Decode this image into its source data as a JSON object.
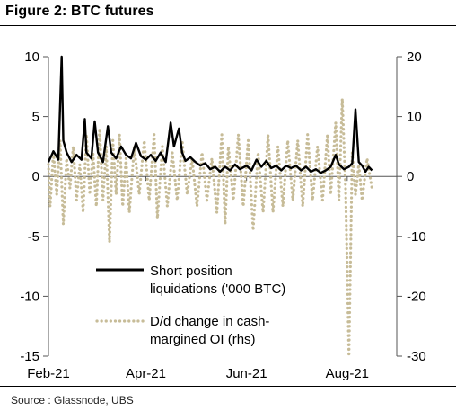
{
  "figure": {
    "title": "Figure 2: BTC futures",
    "source": "Source : Glassnode, UBS"
  },
  "colors": {
    "primary_series": "#000000",
    "secondary_series": "#c7bc98",
    "axis": "#555555"
  },
  "chart_data": {
    "type": "line",
    "x_range": [
      "2021-02-01",
      "2021-08-31"
    ],
    "x_ticks": [
      "Feb-21",
      "Apr-21",
      "Jun-21",
      "Aug-21"
    ],
    "x_tick_dates": [
      "2021-02-01",
      "2021-04-01",
      "2021-06-01",
      "2021-08-01"
    ],
    "ylim_left": [
      -15,
      10
    ],
    "yticks_left": [
      "10",
      "5",
      "0",
      "-5",
      "-10",
      "-15"
    ],
    "ylim_right": [
      -30,
      20
    ],
    "yticks_right": [
      "20",
      "10",
      "0",
      "-10",
      "-20",
      "-30"
    ],
    "grid": false,
    "legend_position": "lower-left",
    "series": [
      {
        "name": "Short position liquidations ('000 BTC)",
        "name_lines": [
          "Short position",
          "liquidations ('000 BTC)"
        ],
        "axis": "left",
        "style": "solid",
        "values": [
          [
            "2021-02-01",
            1.2
          ],
          [
            "2021-02-04",
            2.1
          ],
          [
            "2021-02-07",
            1.4
          ],
          [
            "2021-02-09",
            10.0
          ],
          [
            "2021-02-10",
            3.0
          ],
          [
            "2021-02-12",
            2.0
          ],
          [
            "2021-02-15",
            1.2
          ],
          [
            "2021-02-18",
            1.8
          ],
          [
            "2021-02-21",
            1.4
          ],
          [
            "2021-02-23",
            4.8
          ],
          [
            "2021-02-24",
            2.0
          ],
          [
            "2021-02-27",
            1.5
          ],
          [
            "2021-03-01",
            4.6
          ],
          [
            "2021-03-03",
            2.0
          ],
          [
            "2021-03-06",
            1.2
          ],
          [
            "2021-03-09",
            4.2
          ],
          [
            "2021-03-11",
            2.0
          ],
          [
            "2021-03-14",
            1.5
          ],
          [
            "2021-03-17",
            2.5
          ],
          [
            "2021-03-20",
            1.8
          ],
          [
            "2021-03-23",
            1.5
          ],
          [
            "2021-03-26",
            2.8
          ],
          [
            "2021-03-29",
            1.7
          ],
          [
            "2021-04-01",
            1.4
          ],
          [
            "2021-04-04",
            1.8
          ],
          [
            "2021-04-07",
            1.3
          ],
          [
            "2021-04-10",
            2.0
          ],
          [
            "2021-04-13",
            1.2
          ],
          [
            "2021-04-16",
            4.5
          ],
          [
            "2021-04-18",
            2.5
          ],
          [
            "2021-04-21",
            4.0
          ],
          [
            "2021-04-23",
            2.0
          ],
          [
            "2021-04-25",
            1.3
          ],
          [
            "2021-04-28",
            1.6
          ],
          [
            "2021-05-01",
            1.2
          ],
          [
            "2021-05-04",
            0.9
          ],
          [
            "2021-05-07",
            1.1
          ],
          [
            "2021-05-10",
            0.6
          ],
          [
            "2021-05-13",
            0.8
          ],
          [
            "2021-05-16",
            0.4
          ],
          [
            "2021-05-19",
            0.8
          ],
          [
            "2021-05-22",
            0.5
          ],
          [
            "2021-05-25",
            1.0
          ],
          [
            "2021-05-28",
            0.6
          ],
          [
            "2021-06-01",
            0.9
          ],
          [
            "2021-06-04",
            0.5
          ],
          [
            "2021-06-07",
            1.4
          ],
          [
            "2021-06-10",
            0.8
          ],
          [
            "2021-06-13",
            1.3
          ],
          [
            "2021-06-16",
            0.7
          ],
          [
            "2021-06-19",
            0.9
          ],
          [
            "2021-06-22",
            0.5
          ],
          [
            "2021-06-25",
            0.9
          ],
          [
            "2021-06-28",
            0.7
          ],
          [
            "2021-07-01",
            0.9
          ],
          [
            "2021-07-04",
            0.5
          ],
          [
            "2021-07-07",
            0.8
          ],
          [
            "2021-07-10",
            0.4
          ],
          [
            "2021-07-13",
            0.6
          ],
          [
            "2021-07-16",
            0.3
          ],
          [
            "2021-07-19",
            0.5
          ],
          [
            "2021-07-22",
            0.8
          ],
          [
            "2021-07-25",
            1.8
          ],
          [
            "2021-07-27",
            1.0
          ],
          [
            "2021-07-30",
            0.6
          ],
          [
            "2021-08-02",
            0.8
          ],
          [
            "2021-08-04",
            1.1
          ],
          [
            "2021-08-06",
            5.6
          ],
          [
            "2021-08-08",
            1.2
          ],
          [
            "2021-08-10",
            0.9
          ],
          [
            "2021-08-12",
            0.4
          ],
          [
            "2021-08-14",
            0.8
          ],
          [
            "2021-08-16",
            0.5
          ]
        ]
      },
      {
        "name": "D/d change in cash-margined OI (rhs)",
        "name_lines": [
          "D/d change in cash-",
          "margined OI (rhs)"
        ],
        "axis": "right",
        "style": "dotted",
        "values": [
          [
            "2021-02-01",
            2
          ],
          [
            "2021-02-02",
            -5
          ],
          [
            "2021-02-04",
            4
          ],
          [
            "2021-02-06",
            -3
          ],
          [
            "2021-02-08",
            6
          ],
          [
            "2021-02-10",
            -8
          ],
          [
            "2021-02-12",
            3
          ],
          [
            "2021-02-14",
            -2
          ],
          [
            "2021-02-16",
            5
          ],
          [
            "2021-02-18",
            -4
          ],
          [
            "2021-02-20",
            2
          ],
          [
            "2021-02-22",
            -6
          ],
          [
            "2021-02-24",
            7
          ],
          [
            "2021-02-26",
            -3
          ],
          [
            "2021-02-28",
            4
          ],
          [
            "2021-03-02",
            -5
          ],
          [
            "2021-03-04",
            8
          ],
          [
            "2021-03-06",
            -4
          ],
          [
            "2021-03-08",
            5
          ],
          [
            "2021-03-10",
            -11
          ],
          [
            "2021-03-12",
            6
          ],
          [
            "2021-03-14",
            -3
          ],
          [
            "2021-03-16",
            7
          ],
          [
            "2021-03-18",
            -5
          ],
          [
            "2021-03-20",
            3
          ],
          [
            "2021-03-22",
            -6
          ],
          [
            "2021-03-25",
            5
          ],
          [
            "2021-03-28",
            -3
          ],
          [
            "2021-03-31",
            6
          ],
          [
            "2021-04-03",
            -4
          ],
          [
            "2021-04-06",
            7
          ],
          [
            "2021-04-08",
            -7
          ],
          [
            "2021-04-11",
            5
          ],
          [
            "2021-04-14",
            -5
          ],
          [
            "2021-04-17",
            4
          ],
          [
            "2021-04-20",
            -4
          ],
          [
            "2021-04-23",
            6
          ],
          [
            "2021-04-26",
            -3
          ],
          [
            "2021-04-29",
            3
          ],
          [
            "2021-05-02",
            -5
          ],
          [
            "2021-05-05",
            4
          ],
          [
            "2021-05-08",
            -4
          ],
          [
            "2021-05-11",
            3
          ],
          [
            "2021-05-14",
            -6
          ],
          [
            "2021-05-17",
            7
          ],
          [
            "2021-05-19",
            -8
          ],
          [
            "2021-05-21",
            5
          ],
          [
            "2021-05-24",
            -4
          ],
          [
            "2021-05-27",
            7
          ],
          [
            "2021-05-30",
            -5
          ],
          [
            "2021-06-02",
            6
          ],
          [
            "2021-06-05",
            -9
          ],
          [
            "2021-06-08",
            4
          ],
          [
            "2021-06-11",
            -6
          ],
          [
            "2021-06-14",
            7
          ],
          [
            "2021-06-17",
            -6
          ],
          [
            "2021-06-20",
            5
          ],
          [
            "2021-06-23",
            -5
          ],
          [
            "2021-06-26",
            6
          ],
          [
            "2021-06-29",
            -4
          ],
          [
            "2021-07-02",
            6
          ],
          [
            "2021-07-05",
            -5
          ],
          [
            "2021-07-08",
            7
          ],
          [
            "2021-07-11",
            -4
          ],
          [
            "2021-07-14",
            5
          ],
          [
            "2021-07-17",
            -4
          ],
          [
            "2021-07-20",
            7
          ],
          [
            "2021-07-22",
            -3
          ],
          [
            "2021-07-25",
            9
          ],
          [
            "2021-07-27",
            -4
          ],
          [
            "2021-07-29",
            13
          ],
          [
            "2021-07-31",
            -2
          ],
          [
            "2021-08-02",
            -30
          ],
          [
            "2021-08-04",
            4
          ],
          [
            "2021-08-06",
            -3
          ],
          [
            "2021-08-08",
            2
          ],
          [
            "2021-08-10",
            -4
          ],
          [
            "2021-08-13",
            3
          ],
          [
            "2021-08-16",
            -2
          ]
        ]
      }
    ]
  }
}
